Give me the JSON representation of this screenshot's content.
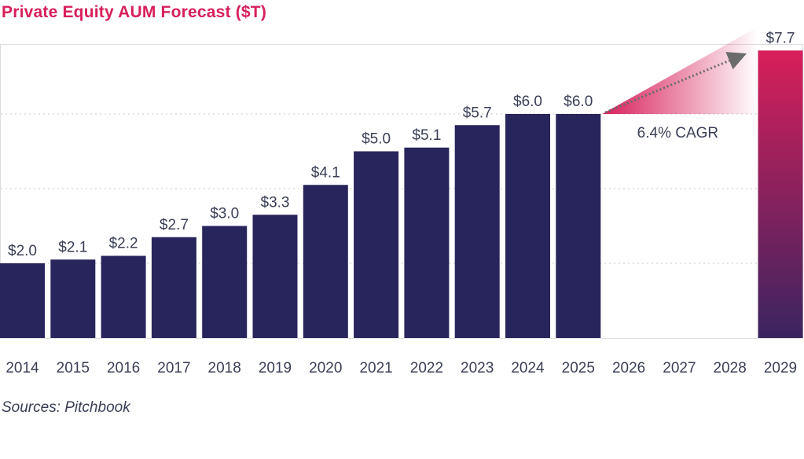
{
  "title": "Private Equity AUM Forecast ($T)",
  "source": "Sources: Pitchbook",
  "colors": {
    "title": "#d81f5a",
    "bar": "#28245c",
    "forecast_top": "#d81f5a",
    "forecast_bottom": "#3a2460",
    "text": "#3a3f57",
    "grid": "#c9c9c9",
    "arrow": "#6b6b6b"
  },
  "chart_data": {
    "type": "bar",
    "categories": [
      "2014",
      "2015",
      "2016",
      "2017",
      "2018",
      "2019",
      "2020",
      "2021",
      "2022",
      "2023",
      "2024",
      "2025",
      "2026",
      "2027",
      "2028",
      "2029"
    ],
    "values": [
      2.0,
      2.1,
      2.2,
      2.7,
      3.0,
      3.3,
      4.1,
      5.0,
      5.1,
      5.7,
      6.0,
      6.0,
      null,
      null,
      null,
      7.7
    ],
    "value_labels": [
      "$2.0",
      "$2.1",
      "$2.2",
      "$2.7",
      "$3.0",
      "$3.3",
      "$4.1",
      "$5.0",
      "$5.1",
      "$5.7",
      "$6.0",
      "$6.0",
      "",
      "",
      "",
      "$7.7"
    ],
    "forecast_categories": [
      "2029"
    ],
    "ylim": [
      0,
      8
    ],
    "grid": true,
    "annotation": {
      "text": "6.4% CAGR",
      "from": "2025",
      "to": "2029"
    }
  }
}
